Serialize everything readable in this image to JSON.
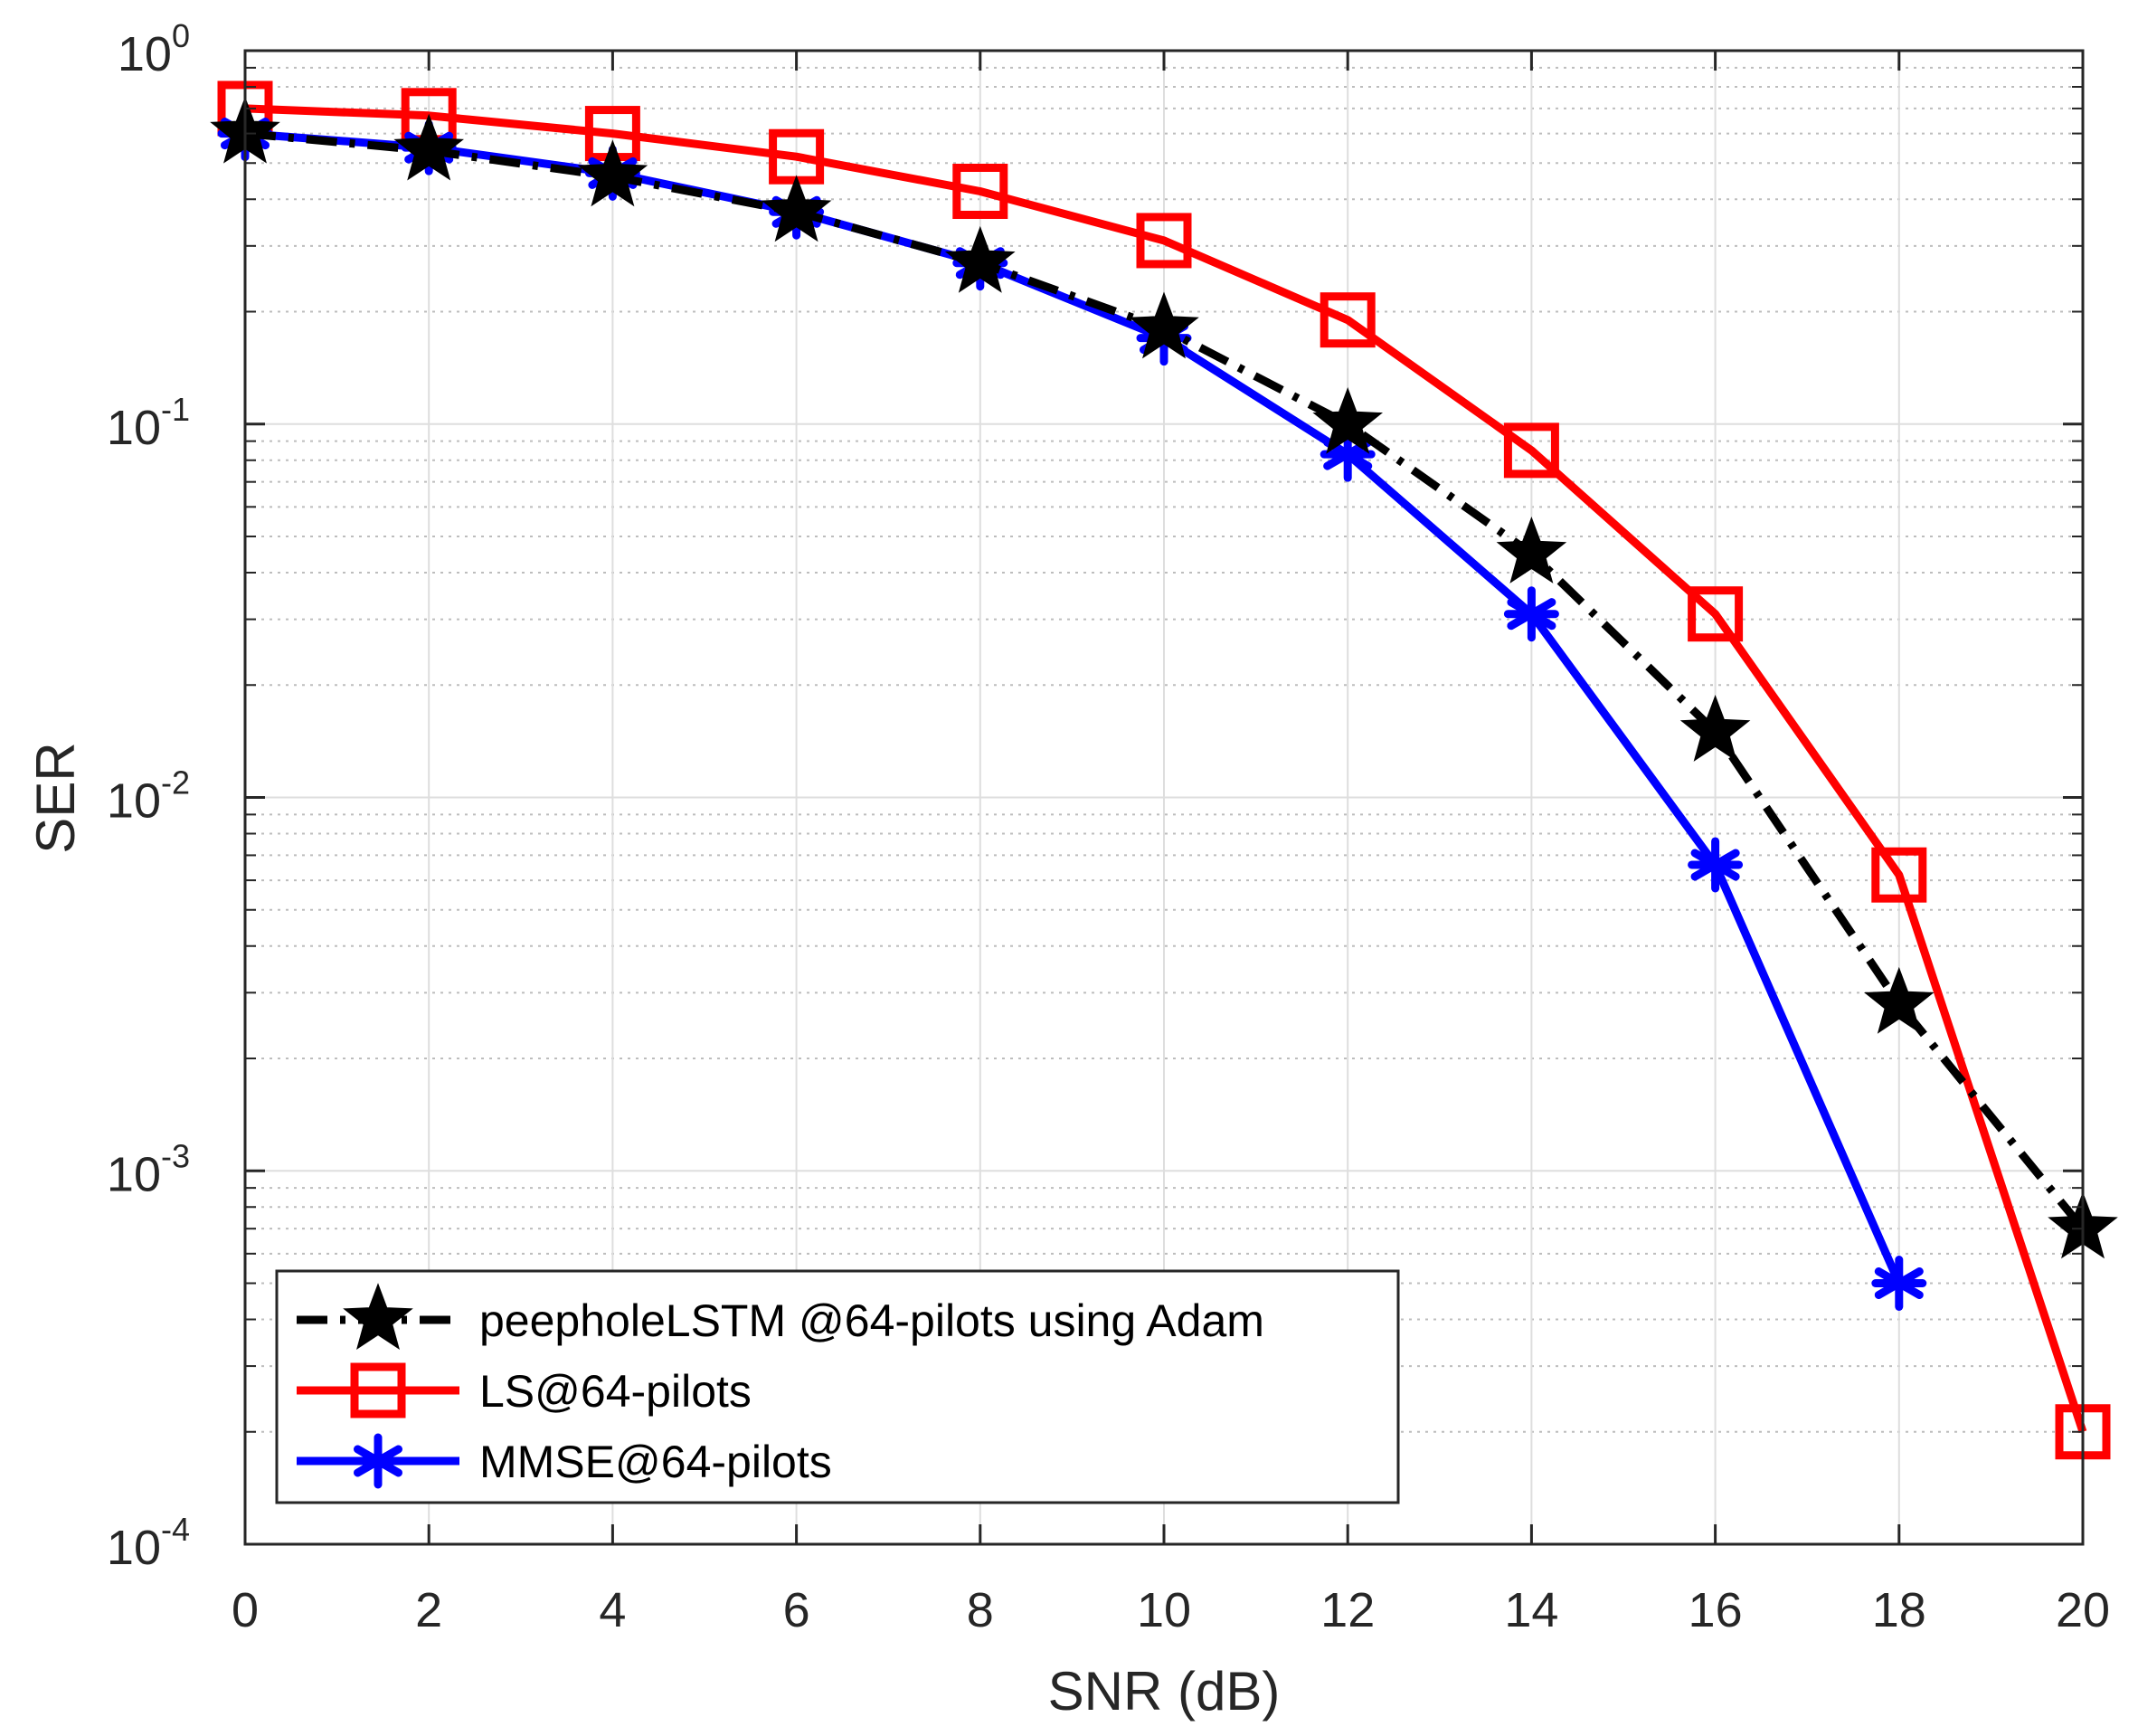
{
  "chart_data": {
    "type": "line",
    "title": "",
    "xlabel": "SNR (dB)",
    "ylabel": "SER",
    "xlim": [
      0,
      20
    ],
    "ylim": [
      0.0001,
      1
    ],
    "yscale": "log",
    "grid": true,
    "legend_position": "bottom-left",
    "x_ticks": [
      "0",
      "2",
      "4",
      "6",
      "8",
      "10",
      "12",
      "14",
      "16",
      "18",
      "20"
    ],
    "y_ticks": [
      {
        "base": "10",
        "exp": "-4",
        "value": 0.0001
      },
      {
        "base": "10",
        "exp": "-3",
        "value": 0.001
      },
      {
        "base": "10",
        "exp": "-2",
        "value": 0.01
      },
      {
        "base": "10",
        "exp": "-1",
        "value": 0.1
      },
      {
        "base": "10",
        "exp": "0",
        "value": 1
      }
    ],
    "series": [
      {
        "name": "peepholeLSTM @64-pilots using Adam",
        "color": "#000000",
        "line_style": "dashdot",
        "marker": "star",
        "x": [
          0,
          2,
          4,
          6,
          8,
          10,
          12,
          14,
          16,
          18,
          20
        ],
        "values": [
          0.6,
          0.54,
          0.46,
          0.37,
          0.27,
          0.18,
          0.1,
          0.045,
          0.015,
          0.0028,
          0.0007
        ]
      },
      {
        "name": "LS@64-pilots",
        "color": "#ff0000",
        "line_style": "solid",
        "marker": "square",
        "x": [
          0,
          2,
          4,
          6,
          8,
          10,
          12,
          14,
          16,
          18,
          20
        ],
        "values": [
          0.7,
          0.67,
          0.6,
          0.52,
          0.42,
          0.31,
          0.19,
          0.085,
          0.031,
          0.0062,
          0.0002
        ]
      },
      {
        "name": "MMSE@64-pilots",
        "color": "#0000ff",
        "line_style": "solid",
        "marker": "asterisk",
        "x": [
          0,
          2,
          4,
          6,
          8,
          10,
          12,
          14,
          16,
          18
        ],
        "values": [
          0.6,
          0.55,
          0.47,
          0.37,
          0.27,
          0.17,
          0.083,
          0.031,
          0.0066,
          0.0005
        ]
      }
    ]
  }
}
